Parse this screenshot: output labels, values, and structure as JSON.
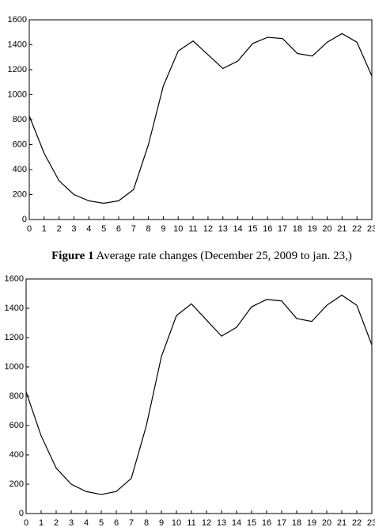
{
  "chart_data": [
    {
      "type": "line",
      "x": [
        0,
        1,
        2,
        3,
        4,
        5,
        6,
        7,
        8,
        9,
        10,
        11,
        12,
        13,
        14,
        15,
        16,
        17,
        18,
        19,
        20,
        21,
        22,
        23
      ],
      "series": [
        {
          "color": "#000000",
          "values": [
            830,
            530,
            310,
            200,
            150,
            130,
            150,
            240,
            600,
            1070,
            1350,
            1430,
            1320,
            1210,
            1270,
            1410,
            1460,
            1450,
            1330,
            1310,
            1420,
            1490,
            1420,
            1150
          ]
        }
      ],
      "xlim": [
        0,
        23
      ],
      "xticks": [
        0,
        1,
        2,
        3,
        4,
        5,
        6,
        7,
        8,
        9,
        10,
        11,
        12,
        13,
        14,
        15,
        16,
        17,
        18,
        19,
        20,
        21,
        22,
        23
      ],
      "ylim": [
        0,
        1600
      ],
      "yticks": [
        0,
        200,
        400,
        600,
        800,
        1000,
        1200,
        1400,
        1600
      ]
    },
    {
      "type": "line",
      "x": [
        0,
        1,
        2,
        3,
        4,
        5,
        6,
        7,
        8,
        9,
        10,
        11,
        12,
        13,
        14,
        15,
        16,
        17,
        18,
        19,
        20,
        21,
        22,
        23
      ],
      "series": [
        {
          "color": "#000000",
          "values": [
            830,
            530,
            310,
            200,
            150,
            130,
            150,
            240,
            600,
            1070,
            1350,
            1430,
            1320,
            1210,
            1270,
            1410,
            1460,
            1450,
            1330,
            1310,
            1420,
            1490,
            1420,
            1150
          ]
        }
      ],
      "xlim": [
        0,
        23
      ],
      "xticks": [
        0,
        1,
        2,
        3,
        4,
        5,
        6,
        7,
        8,
        9,
        10,
        11,
        12,
        13,
        14,
        15,
        16,
        17,
        18,
        19,
        20,
        21,
        22,
        23
      ],
      "ylim": [
        0,
        1600
      ],
      "yticks": [
        0,
        200,
        400,
        600,
        800,
        1000,
        1200,
        1400,
        1600
      ]
    }
  ],
  "caption": {
    "label": "Figure 1",
    "text": "Average rate changes (December 25, 2009 to jan. 23,)"
  }
}
